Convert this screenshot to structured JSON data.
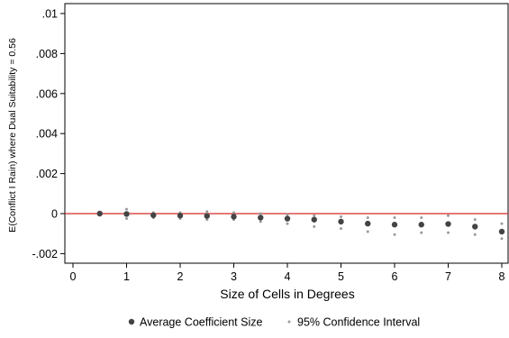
{
  "chart_data": {
    "type": "scatter",
    "xlabel": "Size of Cells in Degrees",
    "ylabel": "E(Conflict I Rain) where Dual Suitability = 0.56",
    "xlim": [
      0,
      8
    ],
    "ylim": [
      -0.0025,
      0.01
    ],
    "xticks": [
      0,
      1,
      2,
      3,
      4,
      5,
      6,
      7,
      8
    ],
    "xtick_labels": [
      "0",
      "1",
      "2",
      "3",
      "4",
      "5",
      "6",
      "7",
      "8"
    ],
    "yticks": [
      -0.002,
      0,
      0.002,
      0.004,
      0.006,
      0.008,
      0.01
    ],
    "ytick_labels": [
      "-.002",
      "0",
      ".002",
      ".004",
      ".006",
      ".008",
      ".01"
    ],
    "reference_line": {
      "y": 0,
      "color": "#d62728"
    },
    "grid": false,
    "legend_position": "bottom",
    "series": [
      {
        "name": "Average Coefficient Size",
        "marker": "filled-circle",
        "color": "#444444",
        "x": [
          0.5,
          1,
          1.5,
          2,
          2.5,
          3,
          3.5,
          4,
          4.5,
          5,
          5.5,
          6,
          6.5,
          7,
          7.5,
          8
        ],
        "y": [
          0,
          -2e-05,
          -8e-05,
          -0.0001,
          -0.00012,
          -0.00015,
          -0.0002,
          -0.00025,
          -0.0003,
          -0.0004,
          -0.0005,
          -0.00055,
          -0.00055,
          -0.00052,
          -0.00065,
          -0.0009
        ]
      },
      {
        "name": "95% Confidence Interval",
        "marker": "small-dot",
        "color": "#9a9a9a",
        "lower": {
          "x": [
            0.5,
            1,
            1.5,
            2,
            2.5,
            3,
            3.5,
            4,
            4.5,
            5,
            5.5,
            6,
            6.5,
            7,
            7.5,
            8
          ],
          "y": [
            -2e-05,
            -0.00025,
            -0.0002,
            -0.00025,
            -0.0003,
            -0.0003,
            -0.0004,
            -0.0005,
            -0.00065,
            -0.00075,
            -0.0009,
            -0.00105,
            -0.00095,
            -0.00095,
            -0.00105,
            -0.00125
          ]
        },
        "upper": {
          "x": [
            0.5,
            1,
            1.5,
            2,
            2.5,
            3,
            3.5,
            4,
            4.5,
            5,
            5.5,
            6,
            6.5,
            7,
            7.5,
            8
          ],
          "y": [
            2e-05,
            0.00022,
            5e-05,
            5e-05,
            0.0001,
            5e-05,
            0.0,
            -5e-05,
            -0.0001,
            -0.00015,
            -0.0002,
            -0.0002,
            -0.0002,
            -0.0001,
            -0.0003,
            -0.0005
          ]
        }
      }
    ],
    "legend": [
      {
        "label": "Average Coefficient Size",
        "marker": "filled-circle",
        "color": "#444444"
      },
      {
        "label": "95% Confidence Interval",
        "marker": "small-dot",
        "color": "#9a9a9a"
      }
    ]
  }
}
